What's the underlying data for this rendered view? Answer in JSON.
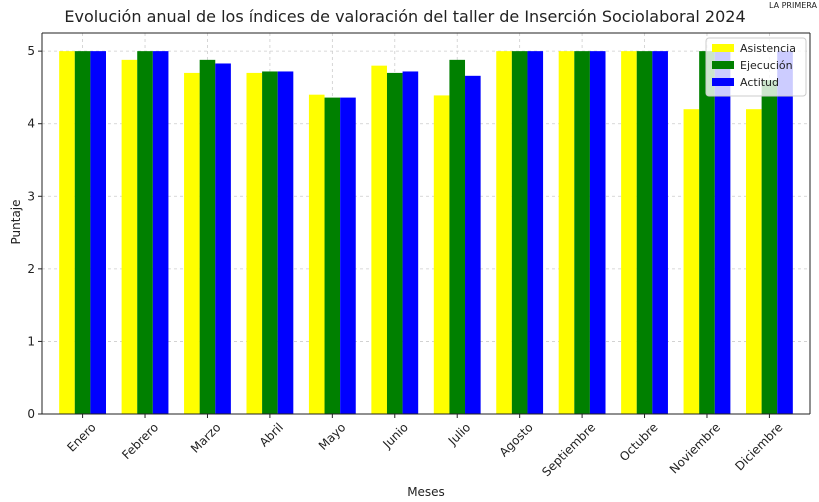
{
  "chart_data": {
    "type": "bar",
    "title": "Evolución anual de los índices de valoración del taller de Inserción Sociolaboral 2024",
    "corner_note": "LA PRIMERA",
    "x_label": "Meses",
    "y_label": "Puntaje",
    "categories": [
      "Enero",
      "Febrero",
      "Marzo",
      "Abril",
      "Mayo",
      "Junio",
      "Julio",
      "Agosto",
      "Septiembre",
      "Octubre",
      "Noviembre",
      "Diciembre"
    ],
    "series": [
      {
        "name": "Asistencia",
        "color": "#ffff00",
        "values": [
          5,
          4.88,
          4.7,
          4.7,
          4.4,
          4.8,
          4.39,
          5,
          5,
          5,
          4.2,
          4.2
        ]
      },
      {
        "name": "Ejecución",
        "color": "#008000",
        "values": [
          5,
          5,
          4.88,
          4.72,
          4.36,
          4.7,
          4.88,
          5,
          5,
          5,
          5,
          4.6
        ]
      },
      {
        "name": "Actitud",
        "color": "#0000ff",
        "values": [
          5,
          5,
          4.83,
          4.72,
          4.36,
          4.72,
          4.66,
          5,
          5,
          5,
          5,
          5
        ]
      }
    ],
    "ylim": [
      0,
      5.25
    ],
    "yticks": [
      0,
      1,
      2,
      3,
      4,
      5
    ],
    "grid": true,
    "legend": "upper right"
  }
}
